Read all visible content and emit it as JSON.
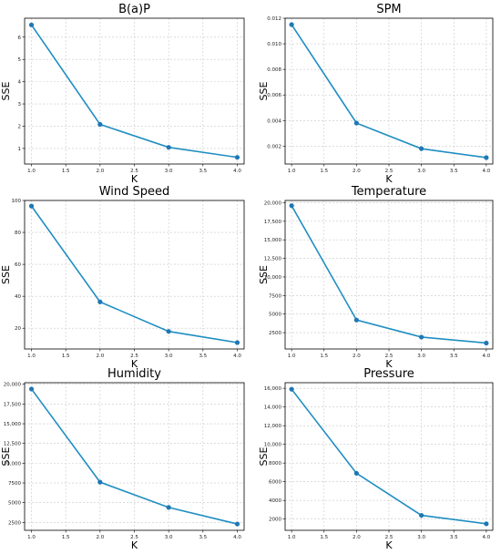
{
  "chart_data": [
    {
      "type": "line",
      "title": "B(a)P",
      "xlabel": "K",
      "ylabel": "SSE",
      "x": [
        1.0,
        2.0,
        3.0,
        4.0
      ],
      "values": [
        6.55,
        2.08,
        1.05,
        0.6
      ],
      "xlim": [
        0.9,
        4.1
      ],
      "ylim": [
        0.3,
        6.85
      ],
      "xticks": [
        1.0,
        1.5,
        2.0,
        2.5,
        3.0,
        3.5,
        4.0
      ],
      "xtick_labels": [
        "1.0",
        "1.5",
        "2.0",
        "2.5",
        "3.0",
        "3.5",
        "4.0"
      ],
      "yticks": [
        1,
        2,
        3,
        4,
        5,
        6
      ],
      "ytick_labels": [
        "1",
        "2",
        "3",
        "4",
        "5",
        "6"
      ],
      "grid": true,
      "color": "#1f8ec2"
    },
    {
      "type": "line",
      "title": "SPM",
      "xlabel": "K",
      "ylabel": "SSE",
      "x": [
        1.0,
        2.0,
        3.0,
        4.0
      ],
      "values": [
        0.0115,
        0.0038,
        0.0018,
        0.0011
      ],
      "xlim": [
        0.9,
        4.1
      ],
      "ylim": [
        0.0006,
        0.012
      ],
      "xticks": [
        1.0,
        1.5,
        2.0,
        2.5,
        3.0,
        3.5,
        4.0
      ],
      "xtick_labels": [
        "1.0",
        "1.5",
        "2.0",
        "2.5",
        "3.0",
        "3.5",
        "4.0"
      ],
      "yticks": [
        0.002,
        0.004,
        0.006,
        0.008,
        0.01,
        0.012
      ],
      "ytick_labels": [
        "0.002",
        "0.004",
        "0.006",
        "0.008",
        "0.010",
        "0.012"
      ],
      "grid": true,
      "color": "#1f8ec2"
    },
    {
      "type": "line",
      "title": "Wind Speed",
      "xlabel": "K",
      "ylabel": "SSE",
      "x": [
        1.0,
        2.0,
        3.0,
        4.0
      ],
      "values": [
        96.5,
        36.5,
        18,
        11
      ],
      "xlim": [
        0.9,
        4.1
      ],
      "ylim": [
        7,
        100
      ],
      "xticks": [
        1.0,
        1.5,
        2.0,
        2.5,
        3.0,
        3.5,
        4.0
      ],
      "xtick_labels": [
        "1.0",
        "1.5",
        "2.0",
        "2.5",
        "3.0",
        "3.5",
        "4.0"
      ],
      "yticks": [
        20,
        40,
        60,
        80,
        100
      ],
      "ytick_labels": [
        "20",
        "40",
        "60",
        "80",
        "100"
      ],
      "grid": true,
      "color": "#1f8ec2"
    },
    {
      "type": "line",
      "title": "Temperature",
      "xlabel": "K",
      "ylabel": "SSE",
      "x": [
        1.0,
        2.0,
        3.0,
        4.0
      ],
      "values": [
        19600,
        4200,
        1900,
        1100
      ],
      "xlim": [
        0.9,
        4.1
      ],
      "ylim": [
        300,
        20300
      ],
      "xticks": [
        1.0,
        1.5,
        2.0,
        2.5,
        3.0,
        3.5,
        4.0
      ],
      "xtick_labels": [
        "1.0",
        "1.5",
        "2.0",
        "2.5",
        "3.0",
        "3.5",
        "4.0"
      ],
      "yticks": [
        2500,
        5000,
        7500,
        10000,
        12500,
        15000,
        17500,
        20000
      ],
      "ytick_labels": [
        "2500",
        "5000",
        "7500",
        "10,000",
        "12,500",
        "15,000",
        "17,500",
        "20,000"
      ],
      "grid": true,
      "color": "#1f8ec2"
    },
    {
      "type": "line",
      "title": "Humidity",
      "xlabel": "K",
      "ylabel": "SSE",
      "x": [
        1.0,
        2.0,
        3.0,
        4.0
      ],
      "values": [
        19400,
        7600,
        4400,
        2300
      ],
      "xlim": [
        0.9,
        4.1
      ],
      "ylim": [
        1500,
        20200
      ],
      "xticks": [
        1.0,
        1.5,
        2.0,
        2.5,
        3.0,
        3.5,
        4.0
      ],
      "xtick_labels": [
        "1.0",
        "1.5",
        "2.0",
        "2.5",
        "3.0",
        "3.5",
        "4.0"
      ],
      "yticks": [
        2500,
        5000,
        7500,
        10000,
        12500,
        15000,
        17500,
        20000
      ],
      "ytick_labels": [
        "2500",
        "5000",
        "7500",
        "10,000",
        "12,500",
        "15,000",
        "17,500",
        "20,000"
      ],
      "grid": true,
      "color": "#1f8ec2"
    },
    {
      "type": "line",
      "title": "Pressure",
      "xlabel": "K",
      "ylabel": "SSE",
      "x": [
        1.0,
        2.0,
        3.0,
        4.0
      ],
      "values": [
        15900,
        6900,
        2400,
        1500
      ],
      "xlim": [
        0.9,
        4.1
      ],
      "ylim": [
        800,
        16600
      ],
      "xticks": [
        1.0,
        1.5,
        2.0,
        2.5,
        3.0,
        3.5,
        4.0
      ],
      "xtick_labels": [
        "1.0",
        "1.5",
        "2.0",
        "2.5",
        "3.0",
        "3.5",
        "4.0"
      ],
      "yticks": [
        2000,
        4000,
        6000,
        8000,
        10000,
        12000,
        14000,
        16000
      ],
      "ytick_labels": [
        "2000",
        "4000",
        "6000",
        "8000",
        "10,000",
        "12,000",
        "14,000",
        "16,000"
      ],
      "grid": true,
      "color": "#1f8ec2"
    }
  ]
}
